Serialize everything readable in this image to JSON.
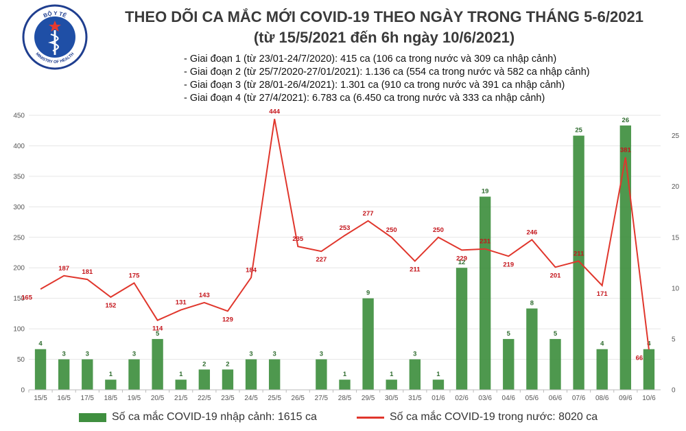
{
  "header": {
    "title_line1": "THEO DÕI CA MẮC MỚI COVID-19 THEO NGÀY TRONG THÁNG 5-6/2021",
    "title_line2": "(từ 15/5/2021 đến 6h ngày 10/6/2021)",
    "logo_text_top": "BỘ Y TẾ",
    "logo_text_bottom": "MINISTRY OF HEALTH"
  },
  "stages": [
    "- Giai đoạn 1 (từ 23/01-24/7/2020): 415 ca (106 ca trong nước và 309 ca nhập cảnh)",
    "- Giai đoạn 2 (từ 25/7/2020-27/01/2021): 1.136 ca (554 ca trong nước và 582 ca nhập cảnh)",
    "- Giai đoạn 3 (từ 28/01-26/4/2021): 1.301 ca (910 ca trong nước và 391 ca nhập cảnh)",
    "- Giai đoạn 4 (từ 27/4/2021): 6.783 ca (6.450 ca trong nước và 333 ca nhập cảnh)"
  ],
  "legend": {
    "bar_label": "Số ca mắc COVID-19 nhập cảnh: 1615 ca",
    "line_label": "Số ca mắc COVID-19 trong nước: 8020 ca"
  },
  "colors": {
    "bar": "#3f8f3f",
    "line": "#e0362c",
    "line_label": "#c4161c",
    "bar_label": "#2e6b2e"
  },
  "chart_data": {
    "type": "bar+line",
    "categories": [
      "15/5",
      "16/5",
      "17/5",
      "18/5",
      "19/5",
      "20/5",
      "21/5",
      "22/5",
      "23/5",
      "24/5",
      "25/5",
      "26/5",
      "27/5",
      "28/5",
      "29/5",
      "30/5",
      "31/5",
      "01/6",
      "02/6",
      "03/6",
      "04/6",
      "05/6",
      "06/6",
      "07/6",
      "08/6",
      "09/6",
      "10/6"
    ],
    "series": [
      {
        "name": "Số ca mắc COVID-19 nhập cảnh: 1615 ca",
        "type": "bar",
        "axis": "right",
        "values": [
          4,
          3,
          3,
          1,
          3,
          5,
          1,
          2,
          2,
          3,
          3,
          null,
          3,
          1,
          9,
          1,
          3,
          1,
          12,
          19,
          5,
          8,
          5,
          25,
          4,
          26,
          4
        ]
      },
      {
        "name": "Số ca mắc COVID-19 trong nước: 8020 ca",
        "type": "line",
        "axis": "left",
        "values": [
          165,
          187,
          181,
          152,
          175,
          114,
          131,
          143,
          129,
          184,
          444,
          235,
          227,
          253,
          277,
          250,
          211,
          250,
          229,
          231,
          219,
          246,
          201,
          211,
          171,
          381,
          66
        ]
      }
    ],
    "left_axis": {
      "ylim": [
        0,
        450
      ],
      "ticks": [
        0,
        50,
        100,
        150,
        200,
        250,
        300,
        350,
        400,
        450
      ]
    },
    "right_axis": {
      "ylim": [
        0,
        27
      ],
      "ticks": [
        0,
        5,
        10,
        15,
        20,
        25
      ]
    },
    "legend_position": "bottom"
  }
}
